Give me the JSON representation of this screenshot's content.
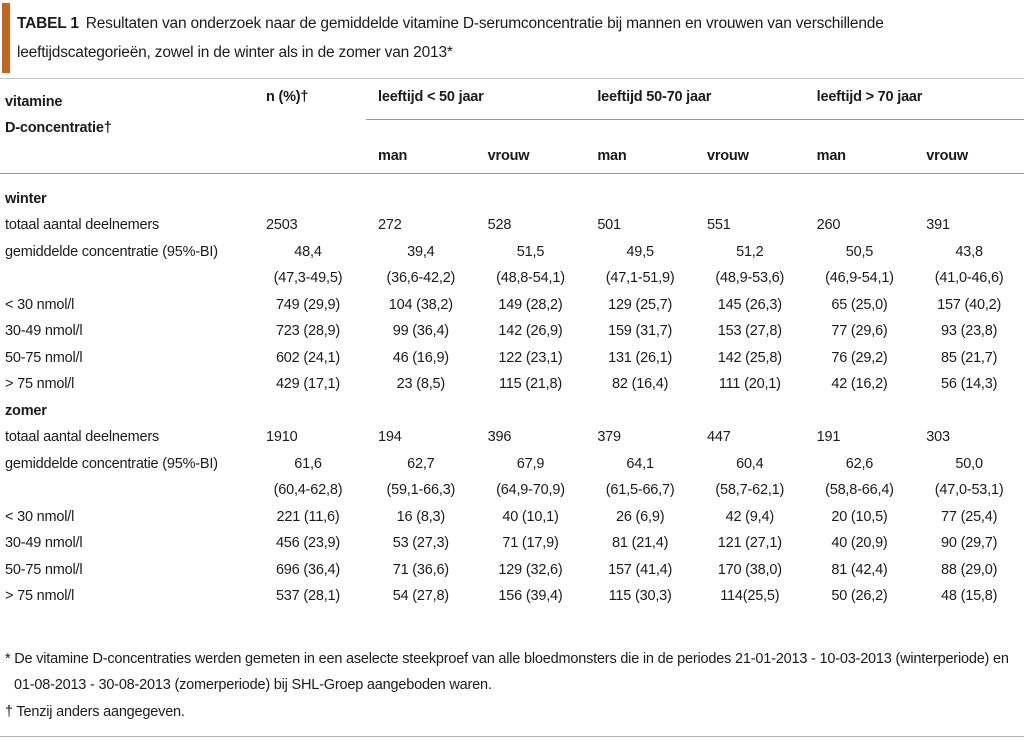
{
  "colors": {
    "accent": "#c2671d",
    "rule_grey": "#9b9b9b"
  },
  "title": {
    "label": "TABEL 1",
    "text": "Resultaten van onderzoek naar de gemiddelde vitamine D-serumconcentratie bij mannen en vrouwen van verschillende leeftijdscategorieën, zowel in de winter als in de zomer van 2013*"
  },
  "table": {
    "header": {
      "col1_line1": "vitamine",
      "col1_line2": "D-concentratie†",
      "n": "n (%)†"
    },
    "age_groups": [
      "leeftijd < 50 jaar",
      "leeftijd 50-70 jaar",
      "leeftijd > 70 jaar"
    ],
    "sub_headers": [
      "man",
      "vrouw",
      "man",
      "vrouw",
      "man",
      "vrouw"
    ],
    "sections": [
      {
        "name": "winter",
        "rows": [
          {
            "label": "totaal aantal deelnemers",
            "values": [
              "2503",
              "272",
              "528",
              "501",
              "551",
              "260",
              "391"
            ]
          },
          {
            "label": "gemiddelde concentratie (95%-BI)",
            "values": [
              "48,4",
              "39,4",
              "51,5",
              "49,5",
              "51,2",
              "50,5",
              "43,8"
            ]
          },
          {
            "label": "",
            "values": [
              "(47,3-49,5)",
              "(36,6-42,2)",
              "(48,8-54,1)",
              "(47,1-51,9)",
              "(48,9-53,6)",
              "(46,9-54,1)",
              "(41,0-46,6)"
            ]
          },
          {
            "label": "< 30 nmol/l",
            "values": [
              "749 (29,9)",
              "104 (38,2)",
              "149 (28,2)",
              "129 (25,7)",
              "145 (26,3)",
              "65 (25,0)",
              "157 (40,2)"
            ]
          },
          {
            "label": "30-49 nmol/l",
            "values": [
              "723 (28,9)",
              "99 (36,4)",
              "142 (26,9)",
              "159 (31,7)",
              "153 (27,8)",
              "77 (29,6)",
              "93 (23,8)"
            ]
          },
          {
            "label": "50-75 nmol/l",
            "values": [
              "602 (24,1)",
              "46 (16,9)",
              "122 (23,1)",
              "131 (26,1)",
              "142 (25,8)",
              "76 (29,2)",
              "85 (21,7)"
            ]
          },
          {
            "label": "> 75 nmol/l",
            "values": [
              "429 (17,1)",
              "23 (8,5)",
              "115 (21,8)",
              "82 (16,4)",
              "111 (20,1)",
              "42 (16,2)",
              "56 (14,3)"
            ]
          }
        ]
      },
      {
        "name": "zomer",
        "rows": [
          {
            "label": "totaal aantal deelnemers",
            "values": [
              "1910",
              "194",
              "396",
              "379",
              "447",
              "191",
              "303"
            ]
          },
          {
            "label": "gemiddelde concentratie (95%-BI)",
            "values": [
              "61,6",
              "62,7",
              "67,9",
              "64,1",
              "60,4",
              "62,6",
              "50,0"
            ]
          },
          {
            "label": "",
            "values": [
              "(60,4-62,8)",
              "(59,1-66,3)",
              "(64,9-70,9)",
              "(61,5-66,7)",
              "(58,7-62,1)",
              "(58,8-66,4)",
              "(47,0-53,1)"
            ]
          },
          {
            "label": "< 30 nmol/l",
            "values": [
              "221 (11,6)",
              "16 (8,3)",
              "40 (10,1)",
              "26 (6,9)",
              "42 (9,4)",
              "20 (10,5)",
              "77 (25,4)"
            ]
          },
          {
            "label": "30-49 nmol/l",
            "values": [
              "456 (23,9)",
              "53 (27,3)",
              "71 (17,9)",
              "81 (21,4)",
              "121 (27,1)",
              "40 (20,9)",
              "90 (29,7)"
            ]
          },
          {
            "label": "50-75 nmol/l",
            "values": [
              "696 (36,4)",
              "71 (36,6)",
              "129 (32,6)",
              "157 (41,4)",
              "170 (38,0)",
              "81 (42,4)",
              "88 (29,0)"
            ]
          },
          {
            "label": "> 75 nmol/l",
            "values": [
              "537 (28,1)",
              "54 (27,8)",
              "156 (39,4)",
              "115 (30,3)",
              "114(25,5)",
              "50 (26,2)",
              "48 (15,8)"
            ]
          }
        ]
      }
    ]
  },
  "footnotes": {
    "star_line1": "* De vitamine D-concentraties werden gemeten in een aselecte steekproef van alle bloedmonsters die in de periodes 21-01-2013 - 10-03-2013 (winterperiode) en",
    "star_line2": "01-08-2013 - 30-08-2013 (zomerperiode) bij SHL-Groep aangeboden waren.",
    "dagger": "† Tenzij anders aangegeven."
  }
}
